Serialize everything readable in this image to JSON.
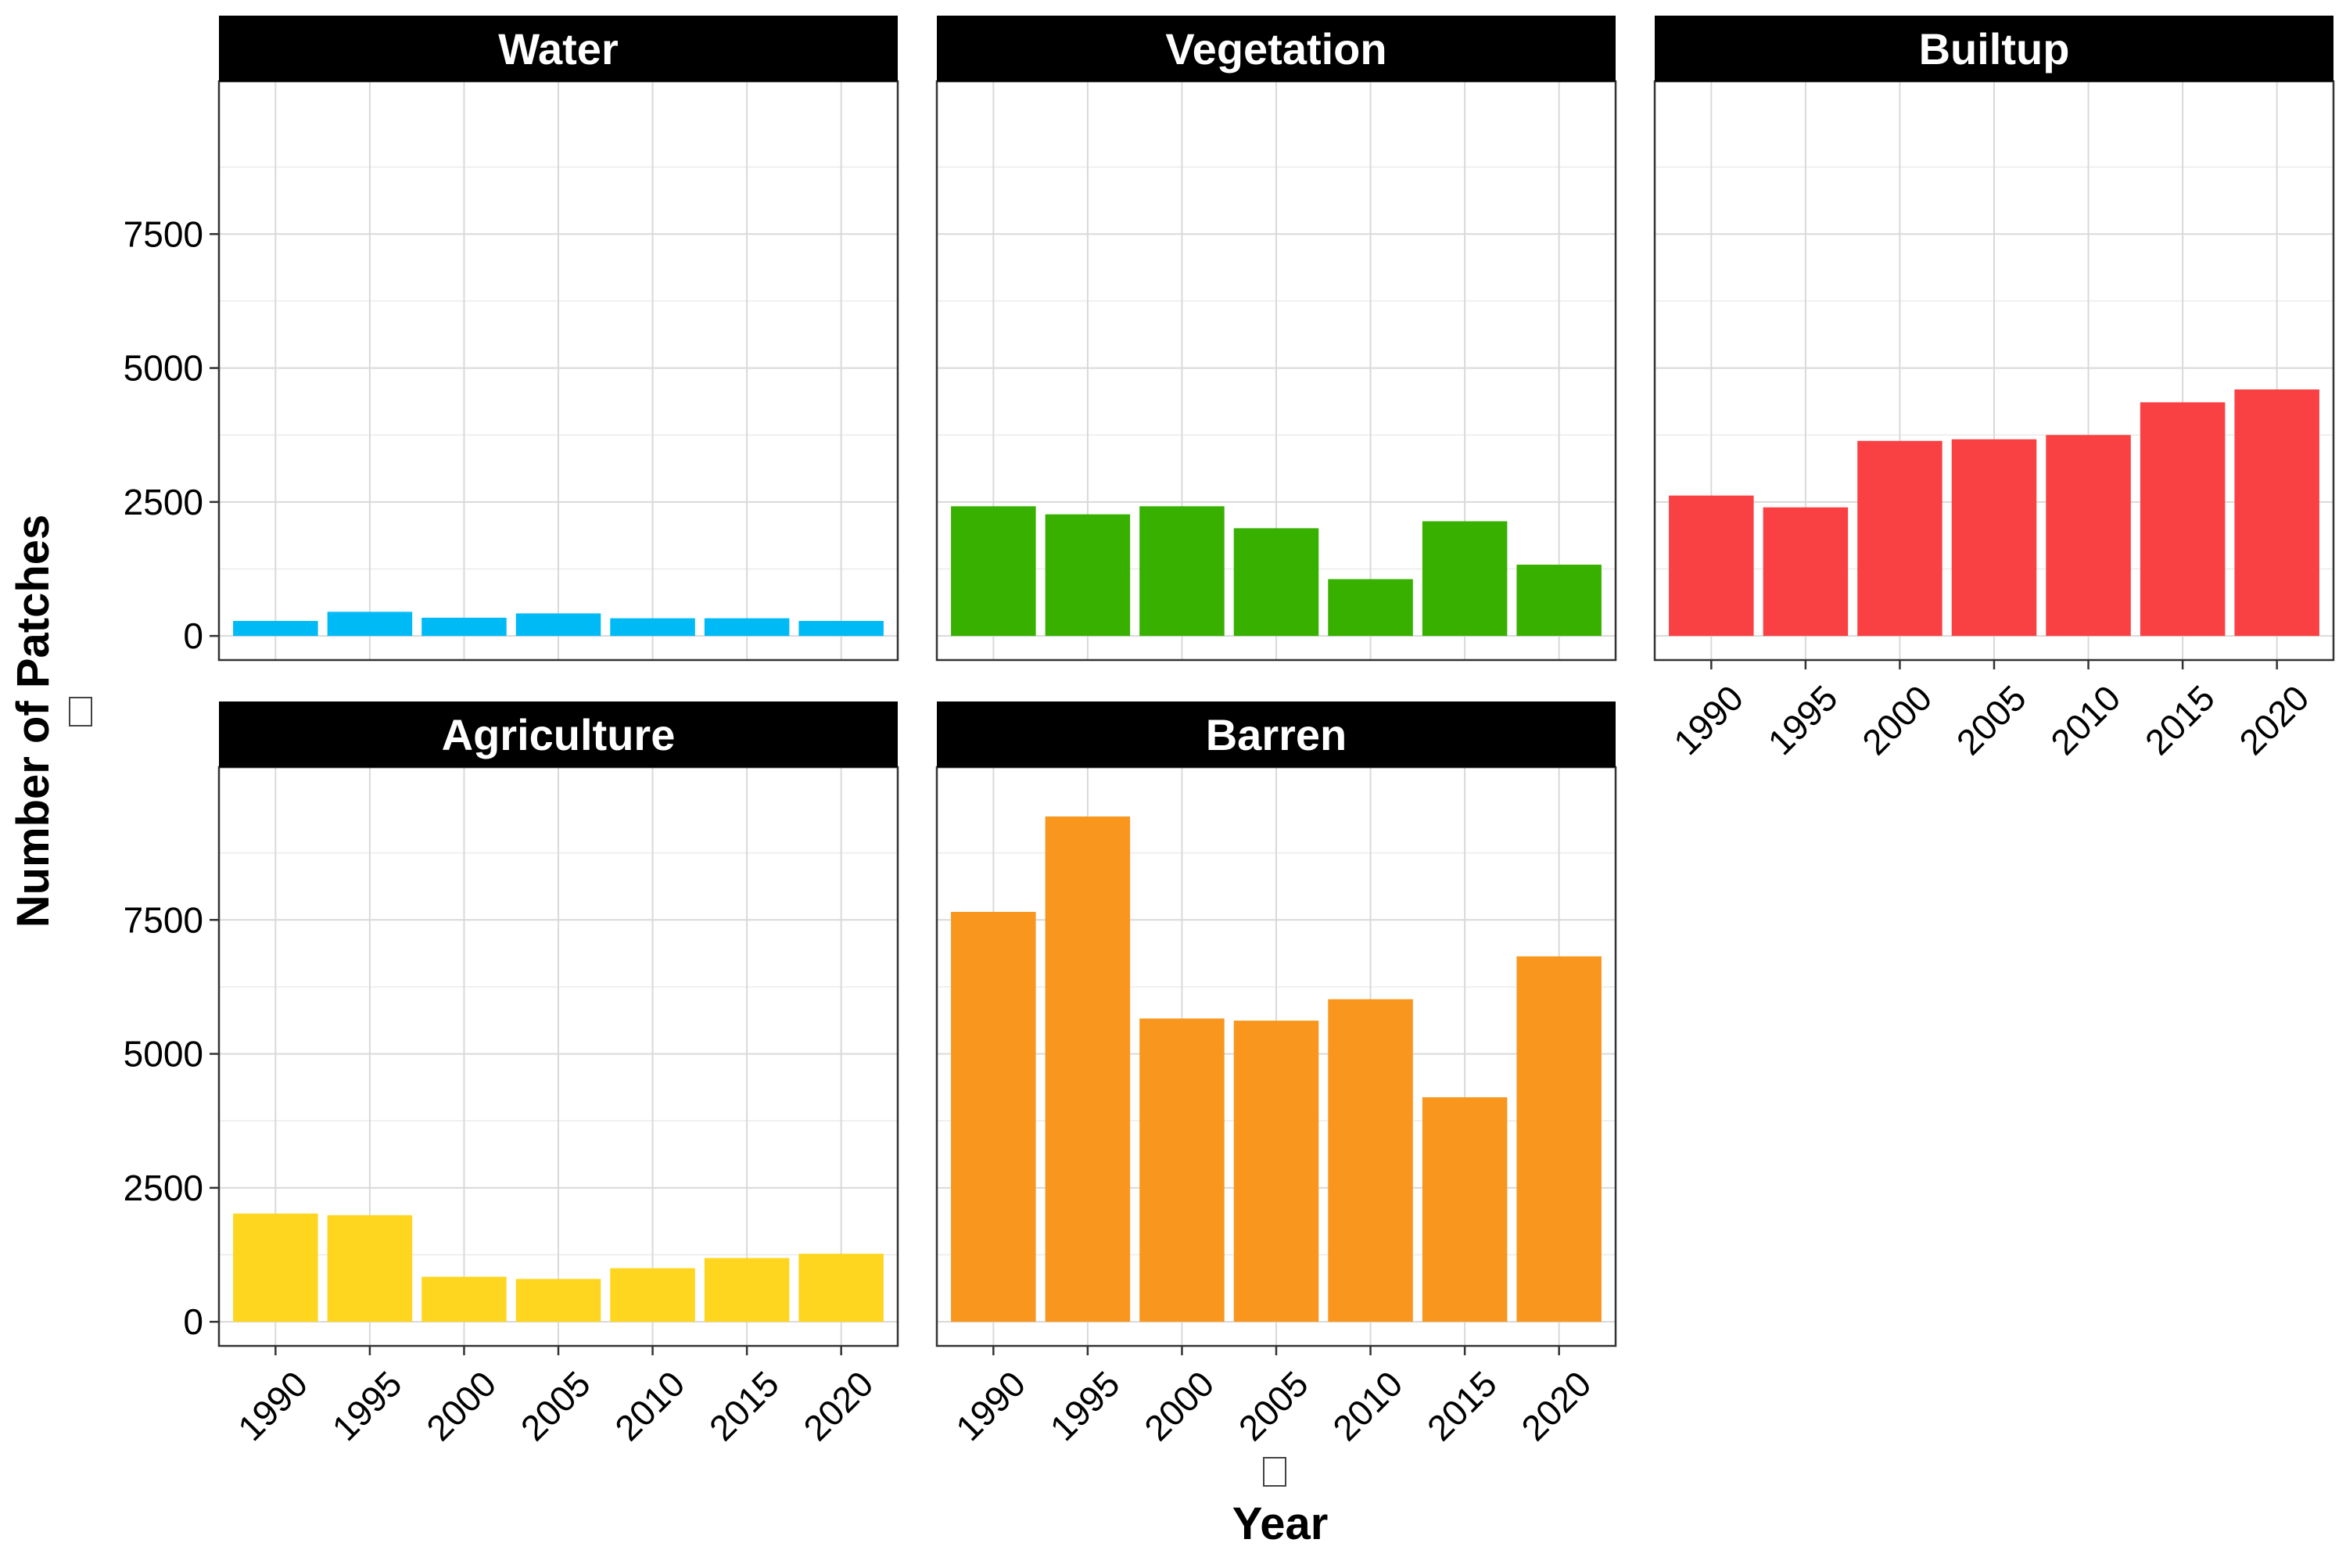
{
  "chart_data": {
    "type": "bar",
    "faceted": true,
    "ylabel": "Number of Patches",
    "xlabel": "Year",
    "categories": [
      "1990",
      "1995",
      "2000",
      "2005",
      "2010",
      "2015",
      "2020"
    ],
    "ylim": [
      -450,
      10350
    ],
    "yticks": [
      0,
      2500,
      5000,
      7500
    ],
    "grid": true,
    "panels": [
      {
        "name": "Water",
        "color": "#00BAF5",
        "values": [
          280,
          450,
          340,
          420,
          330,
          330,
          280
        ]
      },
      {
        "name": "Vegetation",
        "color": "#38B000",
        "values": [
          2420,
          2270,
          2420,
          2010,
          1060,
          2140,
          1330
        ]
      },
      {
        "name": "Builtup",
        "color": "#F94144",
        "values": [
          2620,
          2400,
          3640,
          3670,
          3750,
          4360,
          4600
        ]
      },
      {
        "name": "Agriculture",
        "color": "#FFD61F",
        "values": [
          2020,
          1990,
          840,
          800,
          1000,
          1190,
          1270
        ]
      },
      {
        "name": "Barren",
        "color": "#F8961E",
        "values": [
          7650,
          9430,
          5660,
          5620,
          6020,
          4190,
          6820
        ]
      }
    ]
  }
}
